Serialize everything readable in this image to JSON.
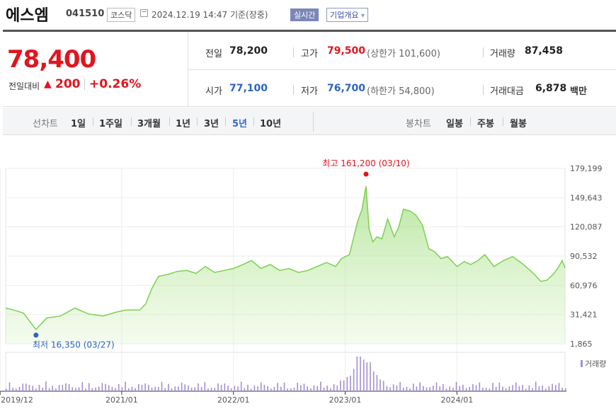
{
  "header": {
    "name": "에스엠",
    "code": "041510",
    "market": "코스닥",
    "timestamp": "2024.12.19 14:47",
    "basis": "기준(장중)",
    "realtime_label": "실시간",
    "company_label": "기업개요",
    "company_arrow": "▾"
  },
  "price": {
    "current": "78,400",
    "change_label": "전일대비",
    "change_arrow": "▲",
    "change_amount": "200",
    "change_pct": "+0.26%"
  },
  "quote": {
    "prev_close_label": "전일",
    "prev_close": "78,200",
    "high_label": "고가",
    "high": "79,500",
    "upper_limit_text": "(상한가 101,600)",
    "volume_label": "거래량",
    "volume": "87,458",
    "open_label": "시가",
    "open": "77,100",
    "low_label": "저가",
    "low": "76,700",
    "lower_limit_text": "(하한가 54,800)",
    "value_label": "거래대금",
    "value": "6,878",
    "value_unit": "백만"
  },
  "periods": {
    "line_chart_label": "선차트",
    "line_tabs": [
      "1일",
      "1주일",
      "3개월",
      "1년",
      "3년",
      "5년",
      "10년"
    ],
    "active": "5년",
    "candle_label": "봉차트",
    "candle_tabs": [
      "일봉",
      "주봉",
      "월봉"
    ]
  },
  "colors": {
    "up": "#e0151f",
    "down": "#2c64c0",
    "line": "#7cd14e",
    "area": "#dff5cf",
    "volume": "#a48fd2"
  },
  "chart_data": {
    "type": "area",
    "y_ticks": [
      "179,199",
      "149,643",
      "120,087",
      "90,532",
      "60,976",
      "31,421",
      "1,865"
    ],
    "y_tick_values": [
      179199,
      149643,
      120087,
      90532,
      60976,
      31421,
      1865
    ],
    "ylim": [
      1865,
      179199
    ],
    "x_ticks": [
      "2019/12",
      "2021/01",
      "2022/01",
      "2023/01",
      "2024/01"
    ],
    "x_tick_dates": [
      "2019-12-01",
      "2021-01-01",
      "2022-01-01",
      "2023-01-01",
      "2024-01-01"
    ],
    "xlim": [
      "2019-12-19",
      "2024-12-19"
    ],
    "series": [
      {
        "x": [
          "2019-12-19",
          "2020-01-15",
          "2020-02-15",
          "2020-03-27",
          "2020-05-01",
          "2020-06-15",
          "2020-08-01",
          "2020-09-15",
          "2020-11-01",
          "2020-12-15",
          "2021-01-15",
          "2021-03-01",
          "2021-03-20",
          "2021-04-10",
          "2021-05-01",
          "2021-06-01",
          "2021-07-01",
          "2021-08-01",
          "2021-09-01",
          "2021-10-01",
          "2021-11-01",
          "2021-12-01",
          "2022-01-01",
          "2022-02-01",
          "2022-03-01",
          "2022-04-01",
          "2022-05-01",
          "2022-06-01",
          "2022-07-01",
          "2022-08-01",
          "2022-09-01",
          "2022-10-01",
          "2022-11-01",
          "2022-12-01",
          "2022-12-20",
          "2023-01-15",
          "2023-02-10",
          "2023-02-25",
          "2023-03-10",
          "2023-03-20",
          "2023-04-01",
          "2023-04-15",
          "2023-05-01",
          "2023-05-20",
          "2023-06-10",
          "2023-06-25",
          "2023-07-10",
          "2023-08-01",
          "2023-08-20",
          "2023-09-10",
          "2023-10-01",
          "2023-10-20",
          "2023-11-10",
          "2023-12-01",
          "2024-01-01",
          "2024-01-25",
          "2024-02-15",
          "2024-03-10",
          "2024-04-01",
          "2024-05-01",
          "2024-06-01",
          "2024-07-01",
          "2024-08-01",
          "2024-08-20",
          "2024-09-10",
          "2024-10-01",
          "2024-10-20",
          "2024-11-10",
          "2024-11-25",
          "2024-12-10",
          "2024-12-19"
        ],
        "y": [
          38000,
          36000,
          33000,
          16350,
          28000,
          30000,
          38000,
          32000,
          30000,
          34000,
          36000,
          36000,
          42000,
          58000,
          70000,
          72000,
          75000,
          76000,
          73000,
          80000,
          74000,
          76000,
          78000,
          82000,
          86000,
          78000,
          82000,
          76000,
          78000,
          74000,
          76000,
          80000,
          84000,
          80000,
          88000,
          92000,
          125000,
          138000,
          161200,
          118000,
          105000,
          110000,
          108000,
          128000,
          110000,
          120000,
          138000,
          136000,
          132000,
          122000,
          98000,
          95000,
          88000,
          90000,
          80000,
          85000,
          82000,
          86000,
          92000,
          80000,
          86000,
          90000,
          83000,
          78000,
          72000,
          65000,
          66000,
          72000,
          78000,
          86000,
          78400
        ]
      }
    ],
    "volume_label": "거래량",
    "max_label": "최고 161,200 (03/10)",
    "max_point": {
      "x": "2023-03-10",
      "y": 161200
    },
    "min_label": "최저 16,350 (03/27)",
    "min_point": {
      "x": "2020-03-27",
      "y": 16350
    }
  }
}
